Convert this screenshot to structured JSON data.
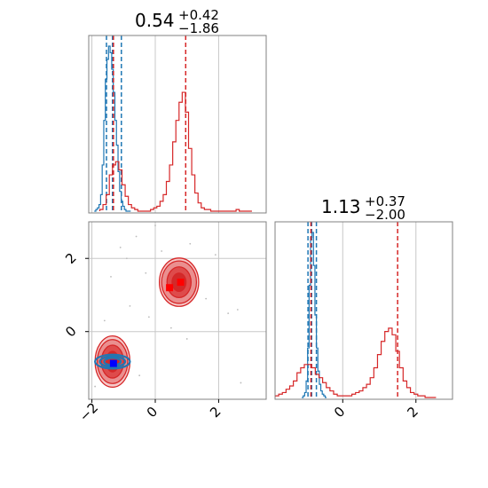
{
  "chart_data": [
    {
      "type": "histogram",
      "panel": "marginal-1",
      "title": {
        "value": "0.54",
        "plus": "+0.42",
        "minus": "−1.86"
      },
      "xlim": [
        -2.1,
        3.5
      ],
      "grid": true,
      "x_ticks": [
        -2,
        0,
        2
      ],
      "series": [
        {
          "color": "#1f77b4",
          "x": [
            -1.9,
            -1.85,
            -1.8,
            -1.75,
            -1.7,
            -1.65,
            -1.6,
            -1.55,
            -1.5,
            -1.45,
            -1.4,
            -1.35,
            -1.3,
            -1.25,
            -1.2,
            -1.15,
            -1.1,
            -1.05,
            -1.0,
            -0.95,
            -0.9,
            -0.85,
            -0.8
          ],
          "values": [
            0,
            0.01,
            0.02,
            0.04,
            0.1,
            0.28,
            0.55,
            0.8,
            0.92,
            1.0,
            0.96,
            0.86,
            0.72,
            0.55,
            0.4,
            0.24,
            0.12,
            0.06,
            0.03,
            0.01,
            0,
            0,
            0
          ],
          "quantiles": [
            -1.54,
            -1.35,
            -1.07
          ]
        },
        {
          "color": "#d62728",
          "x": [
            -1.7,
            -1.6,
            -1.5,
            -1.4,
            -1.3,
            -1.2,
            -1.1,
            -1.0,
            -0.9,
            -0.8,
            -0.7,
            -0.6,
            -0.5,
            -0.4,
            -0.3,
            -0.2,
            -0.1,
            0.0,
            0.1,
            0.2,
            0.3,
            0.4,
            0.5,
            0.6,
            0.7,
            0.8,
            0.9,
            1.0,
            1.1,
            1.2,
            1.3,
            1.4,
            1.5,
            1.6,
            1.7,
            1.8,
            1.9,
            2.0,
            2.1,
            2.2,
            2.3,
            2.4,
            2.5,
            2.6,
            2.7,
            2.8,
            2.9,
            3.0
          ],
          "values": [
            0.01,
            0.04,
            0.1,
            0.22,
            0.28,
            0.3,
            0.25,
            0.16,
            0.09,
            0.04,
            0.02,
            0.01,
            0,
            0,
            0,
            0,
            0.01,
            0.02,
            0.03,
            0.06,
            0.1,
            0.18,
            0.28,
            0.42,
            0.55,
            0.66,
            0.72,
            0.6,
            0.38,
            0.22,
            0.11,
            0.05,
            0.02,
            0.01,
            0.01,
            0,
            0,
            0,
            0,
            0,
            0,
            0,
            0,
            0.01,
            0,
            0,
            0,
            0
          ],
          "quantiles": [
            -1.32,
            0.96
          ]
        }
      ]
    },
    {
      "type": "contour",
      "panel": "joint",
      "xlim": [
        -2.1,
        3.5
      ],
      "ylim": [
        -1.85,
        3.0
      ],
      "grid": true,
      "x_ticks": [
        -2,
        0,
        2
      ],
      "y_ticks": [
        0,
        2
      ],
      "series": [
        {
          "color": "#1f77b4",
          "components": [
            {
              "center": [
                -1.35,
                -0.82
              ],
              "levels": [
                [
                  0.26,
                  0.1
                ],
                [
                  0.4,
                  0.14
                ],
                [
                  0.55,
                  0.19
                ]
              ]
            }
          ],
          "best_fit": [
            -1.32,
            -0.87
          ]
        },
        {
          "color": "#d62728",
          "components": [
            {
              "center": [
                -1.35,
                -0.82
              ],
              "levels": [
                [
                  0.2,
                  0.28
                ],
                [
                  0.35,
                  0.45
                ],
                [
                  0.48,
                  0.6
                ],
                [
                  0.55,
                  0.7
                ]
              ]
            },
            {
              "center": [
                0.75,
                1.35
              ],
              "levels": [
                [
                  0.22,
                  0.25
                ],
                [
                  0.38,
                  0.42
                ],
                [
                  0.55,
                  0.58
                ],
                [
                  0.62,
                  0.66
                ]
              ]
            }
          ],
          "best_fit": [
            [
              0.45,
              1.2
            ],
            [
              0.8,
              1.35
            ]
          ]
        }
      ],
      "scatter": [
        [
          -0.6,
          2.6
        ],
        [
          -0.9,
          2.0
        ],
        [
          -1.4,
          1.5
        ],
        [
          -0.3,
          1.6
        ],
        [
          0.2,
          2.2
        ],
        [
          1.1,
          2.4
        ],
        [
          1.6,
          0.9
        ],
        [
          2.3,
          0.5
        ],
        [
          2.6,
          0.6
        ],
        [
          -0.8,
          0.7
        ],
        [
          -1.6,
          0.3
        ],
        [
          -0.2,
          0.4
        ],
        [
          0.5,
          0.1
        ],
        [
          1.0,
          -0.2
        ],
        [
          -0.5,
          -1.2
        ],
        [
          -1.9,
          -1.5
        ],
        [
          2.7,
          -1.4
        ],
        [
          1.9,
          2.1
        ],
        [
          -1.1,
          2.3
        ],
        [
          0.0,
          2.9
        ]
      ]
    },
    {
      "type": "histogram",
      "panel": "marginal-2",
      "title": {
        "value": "1.13",
        "plus": "+0.37",
        "minus": "−2.00"
      },
      "xlim": [
        -1.85,
        3.0
      ],
      "grid": true,
      "x_ticks": [
        0,
        2
      ],
      "series": [
        {
          "color": "#1f77b4",
          "x": [
            -1.1,
            -1.06,
            -1.02,
            -0.98,
            -0.94,
            -0.9,
            -0.86,
            -0.82,
            -0.78,
            -0.74,
            -0.7,
            -0.66,
            -0.62,
            -0.58,
            -0.54,
            -0.5,
            -0.46
          ],
          "values": [
            0,
            0.01,
            0.03,
            0.1,
            0.3,
            0.68,
            0.97,
            1.0,
            0.8,
            0.5,
            0.3,
            0.16,
            0.08,
            0.04,
            0.02,
            0.01,
            0
          ],
          "quantiles": [
            -0.95,
            -0.85,
            -0.72
          ]
        },
        {
          "color": "#d62728",
          "x": [
            -1.8,
            -1.7,
            -1.6,
            -1.5,
            -1.4,
            -1.3,
            -1.2,
            -1.1,
            -1.0,
            -0.9,
            -0.8,
            -0.7,
            -0.6,
            -0.5,
            -0.4,
            -0.3,
            -0.2,
            -0.1,
            0.0,
            0.1,
            0.2,
            0.3,
            0.4,
            0.5,
            0.6,
            0.7,
            0.8,
            0.9,
            1.0,
            1.1,
            1.2,
            1.3,
            1.4,
            1.5,
            1.6,
            1.7,
            1.8,
            1.9,
            2.0,
            2.1,
            2.2,
            2.3,
            2.4,
            2.5
          ],
          "values": [
            0.01,
            0.02,
            0.03,
            0.05,
            0.07,
            0.1,
            0.15,
            0.18,
            0.2,
            0.2,
            0.18,
            0.14,
            0.12,
            0.09,
            0.06,
            0.04,
            0.02,
            0.01,
            0.01,
            0.01,
            0.01,
            0.02,
            0.03,
            0.04,
            0.06,
            0.08,
            0.12,
            0.18,
            0.26,
            0.34,
            0.4,
            0.42,
            0.38,
            0.28,
            0.18,
            0.1,
            0.06,
            0.03,
            0.02,
            0.01,
            0.01,
            0,
            0,
            0
          ],
          "quantiles": [
            -0.87,
            1.5
          ]
        }
      ]
    }
  ]
}
